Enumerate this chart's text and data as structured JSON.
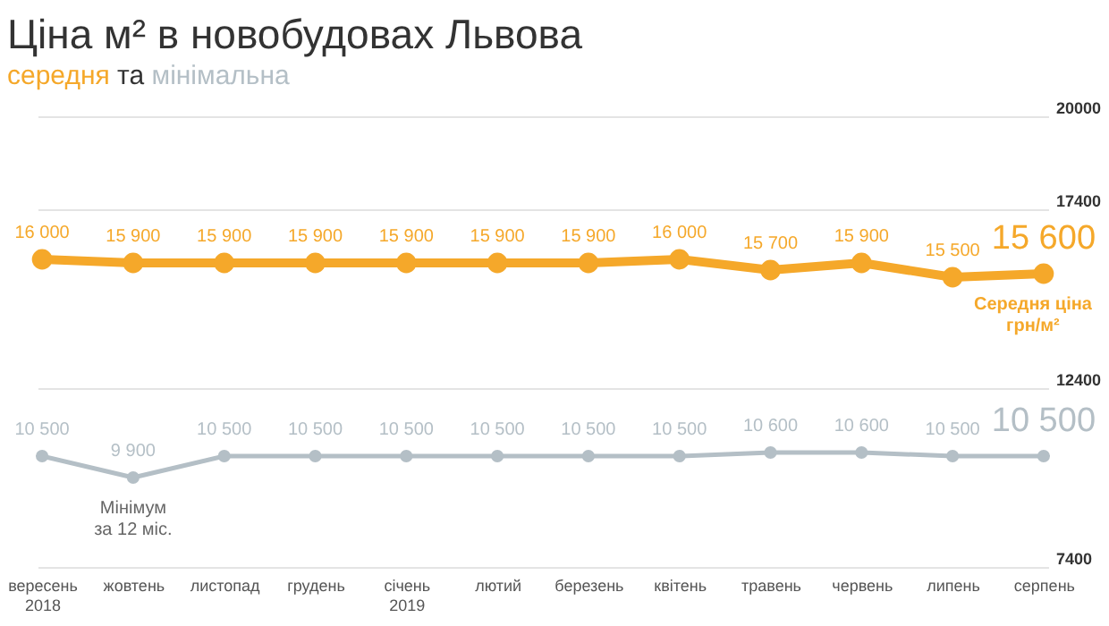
{
  "chart_data": {
    "type": "line",
    "title": "Ціна м² в новобудовах Львова",
    "subtitle": "середня та мінімальна",
    "categories": [
      "вересень\n2018",
      "жовтень",
      "листопад",
      "грудень",
      "січень\n2019",
      "лютий",
      "березень",
      "квітень",
      "травень",
      "червень",
      "липень",
      "серпень"
    ],
    "series": [
      {
        "color": "#f5a82a",
        "values": [
          16000,
          15900,
          15900,
          15900,
          15900,
          15900,
          15900,
          16000,
          15700,
          15900,
          15500,
          15600
        ]
      },
      {
        "color": "#b4bfc6",
        "values": [
          10500,
          9900,
          10500,
          10500,
          10500,
          10500,
          10500,
          10500,
          10600,
          10600,
          10500,
          10500
        ]
      }
    ],
    "ylim": [
      7400,
      20000
    ],
    "yticks": [
      7400,
      12400,
      17400,
      20000
    ],
    "grid": "y",
    "marker": "circle",
    "data_labels": true,
    "annotations": [
      {
        "text": "Середня ціна\nгрн/м²",
        "x": "серпень",
        "y": 15600
      },
      {
        "text": "Мінімум\nза 12 міс.",
        "x": "жовтень",
        "y": 9900
      }
    ]
  }
}
